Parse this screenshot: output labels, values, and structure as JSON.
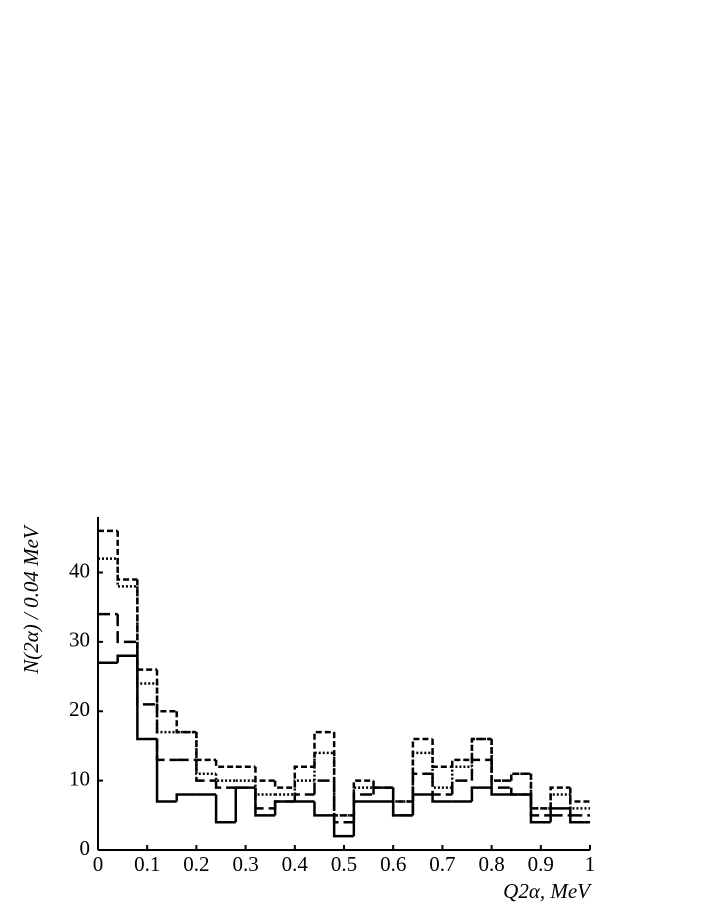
{
  "chart_data": {
    "type": "step-histogram",
    "x_label": "Q2α, MeV",
    "y_label": "N(2α) / 0.04 MeV",
    "bins": [
      0,
      0.04,
      0.08,
      0.12,
      0.16,
      0.2,
      0.24,
      0.28,
      0.32,
      0.36,
      0.4,
      0.44,
      0.48,
      0.52,
      0.56,
      0.6,
      0.64,
      0.68,
      0.72,
      0.76,
      0.8,
      0.84,
      0.88,
      0.92,
      0.96,
      1
    ],
    "series": [
      {
        "color": "#000000",
        "dash": "solid",
        "values": [
          27,
          28,
          16,
          7,
          8,
          8,
          4,
          9,
          5,
          7,
          7,
          5,
          2,
          7,
          7,
          5,
          8,
          7,
          7,
          9,
          8,
          8,
          4,
          6,
          4
        ]
      },
      {
        "color": "#000000",
        "dash": "long-dash",
        "values": [
          34,
          30,
          21,
          13,
          13,
          10,
          9,
          9,
          6,
          7,
          8,
          10,
          4,
          8,
          9,
          5,
          11,
          8,
          10,
          13,
          9,
          8,
          5,
          5,
          5
        ]
      },
      {
        "color": "#000000",
        "dash": "dotted",
        "values": [
          42,
          38,
          24,
          17,
          17,
          11,
          10,
          10,
          8,
          8,
          10,
          14,
          5,
          9,
          9,
          7,
          14,
          9,
          12,
          16,
          10,
          11,
          6,
          8,
          6
        ]
      },
      {
        "color": "#000000",
        "dash": "short-dash",
        "values": [
          46,
          39,
          26,
          20,
          17,
          13,
          12,
          12,
          10,
          9,
          12,
          17,
          5,
          10,
          9,
          7,
          16,
          12,
          13,
          16,
          10,
          11,
          6,
          9,
          7
        ]
      }
    ],
    "xlim": [
      0,
      1
    ],
    "ylim": [
      0,
      48
    ],
    "xticks": [
      0,
      0.1,
      0.2,
      0.3,
      0.4,
      0.5,
      0.6,
      0.7,
      0.8,
      0.9,
      1
    ],
    "yticks": [
      0,
      10,
      20,
      30,
      40
    ],
    "grid": false
  }
}
